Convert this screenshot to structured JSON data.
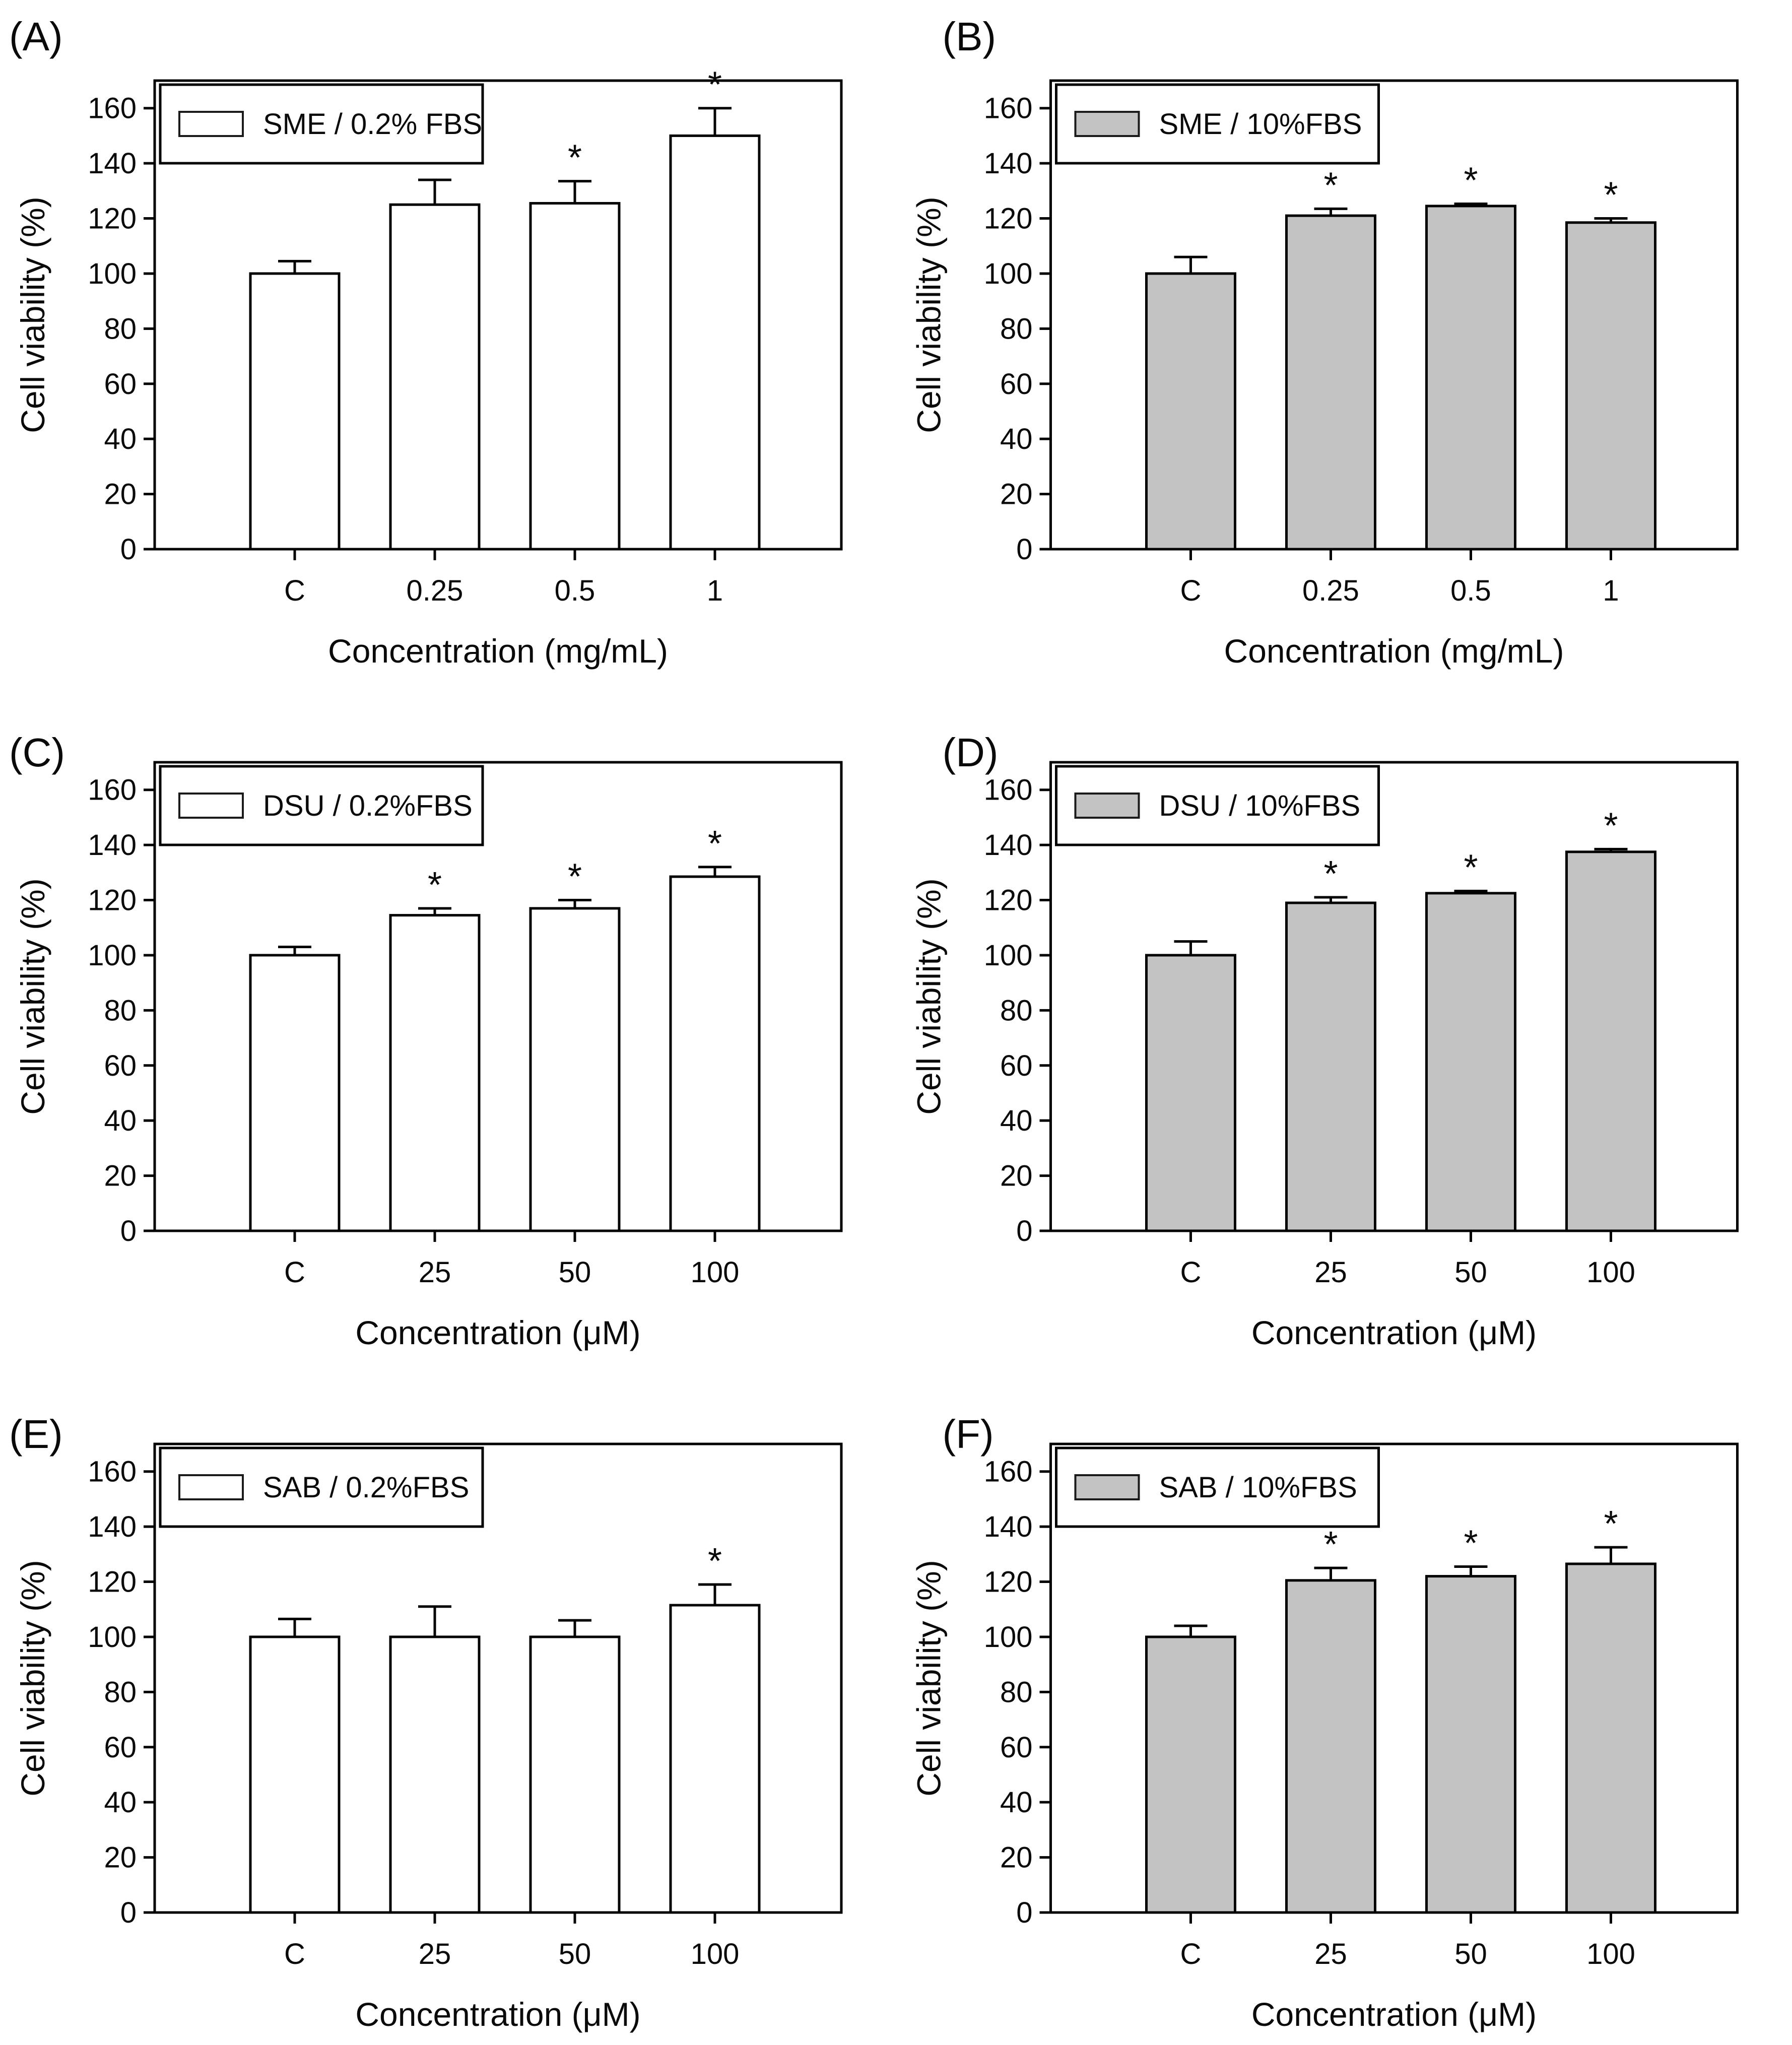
{
  "figure": {
    "background": "#ffffff",
    "bar_outline_color": "#000000",
    "white_bar_fill": "#ffffff",
    "gray_bar_fill": "#c3c3c3",
    "asterisk_color": "#3c3c3c",
    "significance_marker": "*"
  },
  "chart_data": [
    {
      "panel": "(A)",
      "type": "bar",
      "legend": "SME / 0.2% FBS",
      "bar_fill": "#ffffff",
      "categories": [
        "C",
        "0.25",
        "0.5",
        "1"
      ],
      "values": [
        100,
        125,
        125.5,
        150
      ],
      "errors": [
        4.5,
        9,
        8,
        10
      ],
      "significant": [
        false,
        true,
        true,
        true
      ],
      "xlabel": "Concentration (mg/mL)",
      "ylabel": "Cell viability (%)",
      "ylim": [
        0,
        170
      ],
      "yticks": [
        0,
        20,
        40,
        60,
        80,
        100,
        120,
        140,
        160
      ],
      "legend_position": "top-left",
      "grid": false
    },
    {
      "panel": "(B)",
      "type": "bar",
      "legend": "SME / 10%FBS",
      "bar_fill": "#c3c3c3",
      "categories": [
        "C",
        "0.25",
        "0.5",
        "1"
      ],
      "values": [
        100,
        121,
        124.5,
        118.5
      ],
      "errors": [
        6,
        2.5,
        0.8,
        1.5
      ],
      "significant": [
        false,
        true,
        true,
        true
      ],
      "xlabel": "Concentration (mg/mL)",
      "ylabel": "Cell viability (%)",
      "ylim": [
        0,
        170
      ],
      "yticks": [
        0,
        20,
        40,
        60,
        80,
        100,
        120,
        140,
        160
      ],
      "legend_position": "top-left",
      "grid": false
    },
    {
      "panel": "(C)",
      "type": "bar",
      "legend": "DSU / 0.2%FBS",
      "bar_fill": "#ffffff",
      "categories": [
        "C",
        "25",
        "50",
        "100"
      ],
      "values": [
        100,
        114.5,
        117,
        128.5
      ],
      "errors": [
        3,
        2.5,
        3,
        3.5
      ],
      "significant": [
        false,
        true,
        true,
        true
      ],
      "xlabel": "Concentration (μM)",
      "ylabel": "Cell viability (%)",
      "ylim": [
        0,
        170
      ],
      "yticks": [
        0,
        20,
        40,
        60,
        80,
        100,
        120,
        140,
        160
      ],
      "legend_position": "top-left",
      "grid": false
    },
    {
      "panel": "(D)",
      "type": "bar",
      "legend": "DSU / 10%FBS",
      "bar_fill": "#c3c3c3",
      "categories": [
        "C",
        "25",
        "50",
        "100"
      ],
      "values": [
        100,
        119,
        122.5,
        137.5
      ],
      "errors": [
        5,
        2,
        0.8,
        1
      ],
      "significant": [
        false,
        true,
        true,
        true
      ],
      "xlabel": "Concentration (μM)",
      "ylabel": "Cell viability (%)",
      "ylim": [
        0,
        170
      ],
      "yticks": [
        0,
        20,
        40,
        60,
        80,
        100,
        120,
        140,
        160
      ],
      "legend_position": "top-left",
      "grid": false
    },
    {
      "panel": "(E)",
      "type": "bar",
      "legend": "SAB / 0.2%FBS",
      "bar_fill": "#ffffff",
      "categories": [
        "C",
        "25",
        "50",
        "100"
      ],
      "values": [
        100,
        100,
        100,
        111.5
      ],
      "errors": [
        6.5,
        11,
        6,
        7.5
      ],
      "significant": [
        false,
        false,
        false,
        true
      ],
      "xlabel": "Concentration (μM)",
      "ylabel": "Cell viability (%)",
      "ylim": [
        0,
        170
      ],
      "yticks": [
        0,
        20,
        40,
        60,
        80,
        100,
        120,
        140,
        160
      ],
      "legend_position": "top-left",
      "grid": false
    },
    {
      "panel": "(F)",
      "type": "bar",
      "legend": "SAB / 10%FBS",
      "bar_fill": "#c3c3c3",
      "categories": [
        "C",
        "25",
        "50",
        "100"
      ],
      "values": [
        100,
        120.5,
        122,
        126.5
      ],
      "errors": [
        4,
        4.5,
        3.5,
        6
      ],
      "significant": [
        false,
        true,
        true,
        true
      ],
      "xlabel": "Concentration (μM)",
      "ylabel": "Cell viability (%)",
      "ylim": [
        0,
        170
      ],
      "yticks": [
        0,
        20,
        40,
        60,
        80,
        100,
        120,
        140,
        160
      ],
      "legend_position": "top-left",
      "grid": false
    }
  ]
}
